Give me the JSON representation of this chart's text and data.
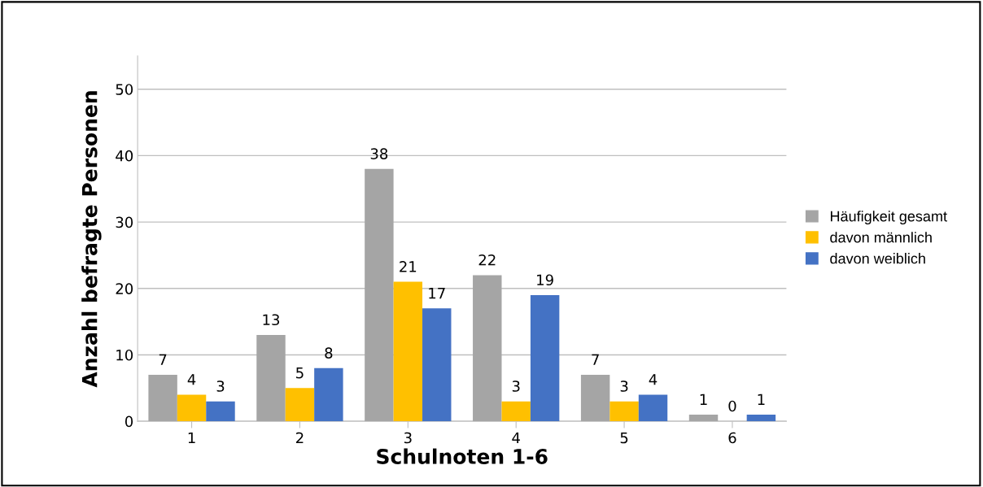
{
  "chart_data": {
    "type": "bar",
    "xlabel": "Schulnoten 1-6",
    "ylabel": "Anzahl befragte Personen",
    "categories": [
      "1",
      "2",
      "3",
      "4",
      "5",
      "6"
    ],
    "series": [
      {
        "name": "Häufigkeit gesamt",
        "color": "#a5a5a5",
        "values": [
          7,
          13,
          38,
          22,
          7,
          1
        ]
      },
      {
        "name": "davon männlich",
        "color": "#ffc000",
        "values": [
          4,
          5,
          21,
          3,
          3,
          0
        ]
      },
      {
        "name": "davon weiblich",
        "color": "#4472c4",
        "values": [
          3,
          8,
          17,
          19,
          4,
          1
        ]
      }
    ],
    "ylim": [
      0,
      55
    ],
    "yticks": [
      0,
      10,
      20,
      30,
      40,
      50
    ],
    "grid": "y",
    "legend": "right",
    "data_labels": true
  }
}
